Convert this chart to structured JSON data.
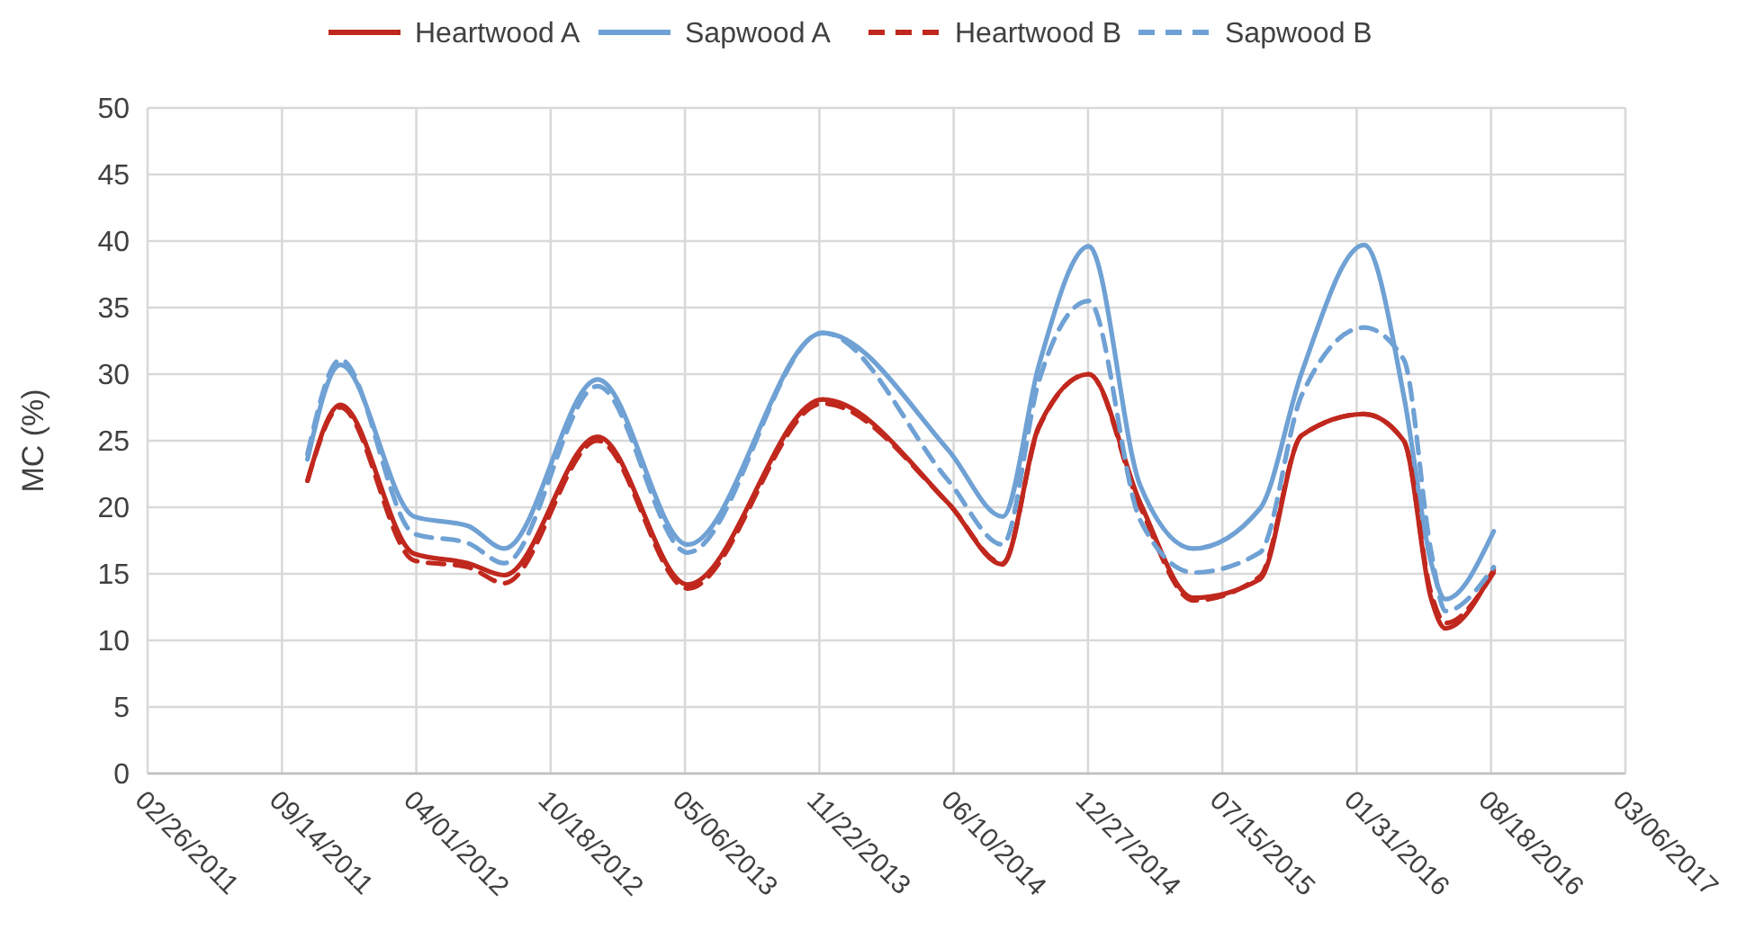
{
  "chart_data": {
    "type": "line",
    "ylabel": "MC (%)",
    "x": [
      "2011-10-22",
      "2011-12-10",
      "2012-03-29",
      "2012-06-17",
      "2012-08-10",
      "2012-12-27",
      "2013-05-10",
      "2013-11-27",
      "2014-06-02",
      "2014-08-22",
      "2014-10-15",
      "2014-12-28",
      "2015-03-15",
      "2015-06-02",
      "2015-09-09",
      "2015-11-10",
      "2016-02-11",
      "2016-04-10",
      "2016-05-21",
      "2016-06-11",
      "2016-08-22"
    ],
    "series": [
      {
        "name": "Heartwood A",
        "color": "#c0281e",
        "line_style": "solid",
        "values": [
          22.0,
          27.7,
          16.5,
          15.8,
          14.9,
          25.3,
          14.2,
          28.1,
          20.3,
          15.7,
          26.1,
          30.0,
          20.3,
          13.2,
          14.6,
          25.4,
          27.0,
          25.0,
          13.1,
          10.9,
          15.3
        ]
      },
      {
        "name": "Sapwood A",
        "color": "#6fa1d4",
        "line_style": "solid",
        "values": [
          23.6,
          30.7,
          19.3,
          18.6,
          16.9,
          29.6,
          17.2,
          33.1,
          24.3,
          19.3,
          30.7,
          39.6,
          21.6,
          16.9,
          19.9,
          30.1,
          39.7,
          28.4,
          15.8,
          13.1,
          18.2
        ]
      },
      {
        "name": "Heartwood B",
        "color": "#c0281e",
        "line_style": "dashed",
        "values": [
          22.0,
          27.5,
          16.0,
          15.5,
          14.3,
          25.0,
          13.9,
          27.8,
          20.3,
          15.8,
          26.0,
          30.0,
          20.0,
          13.0,
          14.8,
          25.4,
          27.0,
          25.0,
          13.5,
          11.3,
          15.1
        ]
      },
      {
        "name": "Sapwood B",
        "color": "#6fa1d4",
        "line_style": "dashed",
        "values": [
          24.0,
          31.1,
          18.0,
          17.3,
          15.8,
          29.1,
          16.6,
          33.1,
          22.0,
          17.2,
          29.5,
          35.5,
          19.0,
          15.1,
          16.6,
          28.4,
          33.5,
          31.1,
          16.6,
          12.2,
          15.5
        ]
      }
    ],
    "xlim": [
      "2011-02-26",
      "2017-03-06"
    ],
    "xticks": [
      {
        "value": "2011-02-26",
        "label": "02/26/2011"
      },
      {
        "value": "2011-09-14",
        "label": "09/14/2011"
      },
      {
        "value": "2012-04-01",
        "label": "04/01/2012"
      },
      {
        "value": "2012-10-18",
        "label": "10/18/2012"
      },
      {
        "value": "2013-05-06",
        "label": "05/06/2013"
      },
      {
        "value": "2013-11-22",
        "label": "11/22/2013"
      },
      {
        "value": "2014-06-10",
        "label": "06/10/2014"
      },
      {
        "value": "2014-12-27",
        "label": "12/27/2014"
      },
      {
        "value": "2015-07-15",
        "label": "07/15/2015"
      },
      {
        "value": "2016-01-31",
        "label": "01/31/2016"
      },
      {
        "value": "2016-08-18",
        "label": "08/18/2016"
      },
      {
        "value": "2017-03-06",
        "label": "03/06/2017"
      }
    ],
    "ylim": [
      0,
      50
    ],
    "yticks": [
      0,
      5,
      10,
      15,
      20,
      25,
      30,
      35,
      40,
      45,
      50
    ],
    "grid": true,
    "legend": "top",
    "marker": "none"
  }
}
